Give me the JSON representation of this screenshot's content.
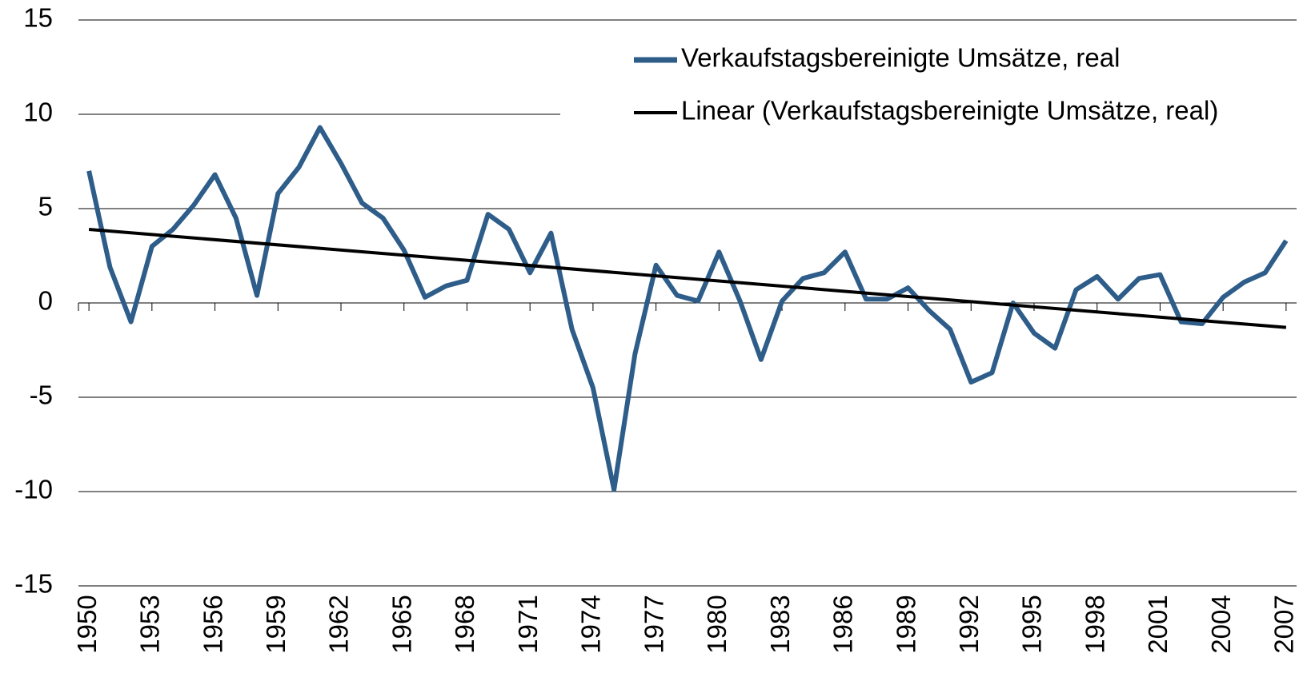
{
  "chart_data": {
    "type": "line",
    "x": [
      1950,
      1951,
      1952,
      1953,
      1954,
      1955,
      1956,
      1957,
      1958,
      1959,
      1960,
      1961,
      1962,
      1963,
      1964,
      1965,
      1966,
      1967,
      1968,
      1969,
      1970,
      1971,
      1972,
      1973,
      1974,
      1975,
      1976,
      1977,
      1978,
      1979,
      1980,
      1981,
      1982,
      1983,
      1984,
      1985,
      1986,
      1987,
      1988,
      1989,
      1990,
      1991,
      1992,
      1993,
      1994,
      1995,
      1996,
      1997,
      1998,
      1999,
      2000,
      2001,
      2002,
      2003,
      2004,
      2005,
      2006,
      2007
    ],
    "series": [
      {
        "name": "Verkaufstagsbereinigte Umsätze, real",
        "color": "#2e5d8a",
        "values": [
          7.0,
          1.9,
          -1.0,
          3.0,
          3.9,
          5.2,
          6.8,
          4.5,
          0.4,
          5.8,
          7.2,
          9.3,
          7.4,
          5.3,
          4.5,
          2.8,
          0.3,
          0.9,
          1.2,
          4.7,
          3.9,
          1.6,
          3.7,
          -1.4,
          -4.5,
          -9.9,
          -2.7,
          2.0,
          0.4,
          0.1,
          2.7,
          0.1,
          -3.0,
          0.1,
          1.3,
          1.6,
          2.7,
          0.2,
          0.2,
          0.8,
          -0.4,
          -1.4,
          -4.2,
          -3.7,
          0.0,
          -1.6,
          -2.4,
          0.7,
          1.4,
          0.2,
          1.3,
          1.5,
          -1.0,
          -1.1,
          0.3,
          1.1,
          1.6,
          3.3
        ]
      },
      {
        "name": "Linear (Verkaufstagsbereinigte Umsätze, real)",
        "color": "#000000",
        "x": [
          1950,
          2007
        ],
        "values": [
          3.9,
          -1.3
        ]
      }
    ],
    "xlim": [
      1949.5,
      2007.5
    ],
    "xticks": [
      1950,
      1953,
      1956,
      1959,
      1962,
      1965,
      1968,
      1971,
      1974,
      1977,
      1980,
      1983,
      1986,
      1989,
      1992,
      1995,
      1998,
      2001,
      2004,
      2007
    ],
    "ylim": [
      -15,
      15
    ],
    "yticks": [
      -15,
      -10,
      -5,
      0,
      5,
      10,
      15
    ],
    "grid": true,
    "legend": "top-right"
  }
}
